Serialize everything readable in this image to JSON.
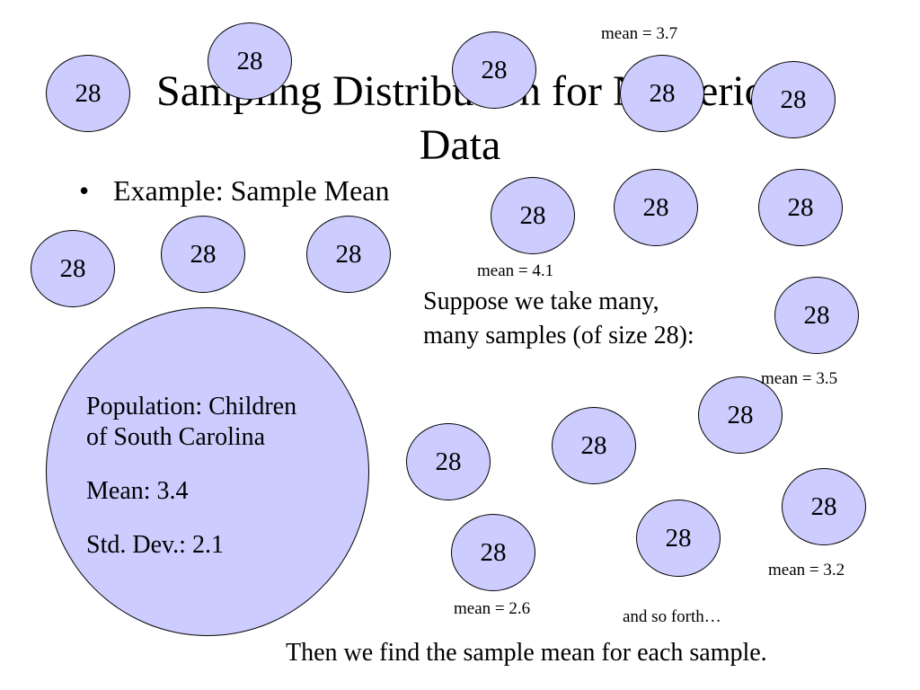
{
  "title": "Sampling Distribution for Numeric Data",
  "bullet": "Example: Sample Mean",
  "sample_size_label": "28",
  "population": {
    "name": "Population: Children of South Carolina",
    "line1": "Population: Children",
    "line2": "of South Carolina",
    "mean": "Mean: 3.4",
    "sd": "Std. Dev.: 2.1"
  },
  "means": {
    "m1": "mean = 3.7",
    "m2": "mean = 4.1",
    "m3": "mean = 3.5",
    "m4": "mean = 3.2",
    "m5": "mean = 2.6"
  },
  "suppose": {
    "line1": "Suppose we take many,",
    "line2": "many samples (of size 28):"
  },
  "and_so_forth": "and so forth…",
  "conclusion": "Then we find the sample mean for each sample.",
  "colors": {
    "circle_fill": "#ccccff",
    "circle_stroke": "#000000"
  }
}
